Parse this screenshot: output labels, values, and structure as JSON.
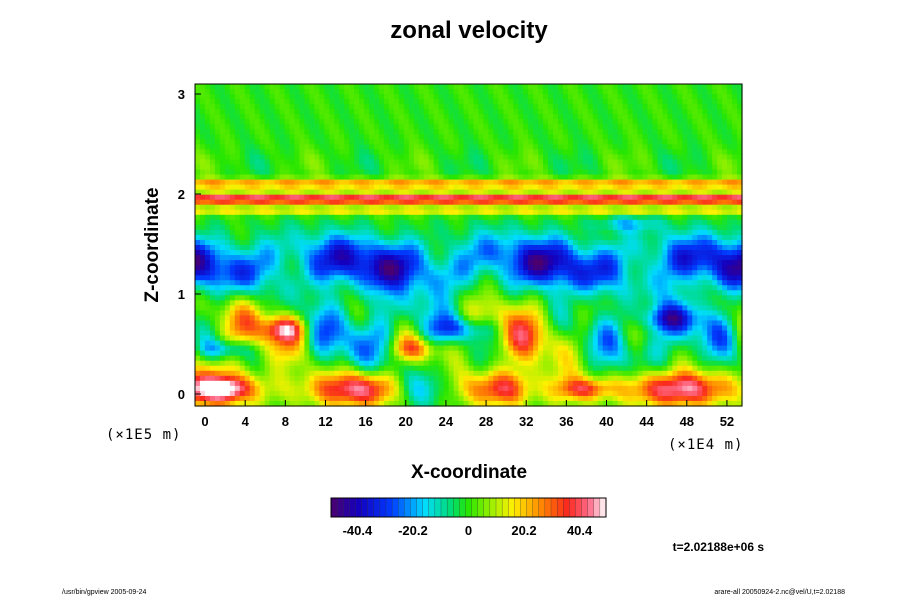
{
  "chart_data": {
    "type": "heatmap",
    "title": "zonal velocity",
    "xlabel": "X-coordinate",
    "ylabel": "Z-coordinate",
    "x_scale_note": "(×1E4 m)",
    "y_scale_note": "(×1E5 m)",
    "x_ticks": [
      "0",
      "4",
      "8",
      "12",
      "16",
      "20",
      "24",
      "28",
      "32",
      "36",
      "40",
      "44",
      "48",
      "52"
    ],
    "x_tick_values": [
      0,
      4,
      8,
      12,
      16,
      20,
      24,
      28,
      32,
      36,
      40,
      44,
      48,
      52
    ],
    "y_ticks": [
      "0",
      "1",
      "2",
      "3"
    ],
    "y_tick_values": [
      0,
      1,
      2,
      3
    ],
    "xlim": [
      -1,
      53.5
    ],
    "ylim": [
      -0.12,
      3.1
    ],
    "colorbar": {
      "min": -50,
      "max": 50,
      "tick_labels": [
        "-40.4",
        "-20.2",
        "0",
        "20.2",
        "40.4"
      ],
      "tick_values": [
        -40.4,
        -20.2,
        0,
        20.2,
        40.4
      ],
      "palette": "rainbow (purple-blue-cyan-green-yellow-red-white)"
    },
    "time_label": "t=2.02188e+06 s",
    "features": [
      {
        "z": 1.95,
        "desc": "strong positive (red) zonal jet band across domain"
      },
      {
        "z": 2.1,
        "desc": "weaker positive (yellow/orange) band"
      },
      {
        "z": 1.3,
        "desc": "negative (blue) patchy layer"
      },
      {
        "z": 0.1,
        "desc": "strong positive (red/white) near-surface flow with blue patches"
      }
    ]
  },
  "footer": {
    "left": "/usr/bin/gpview 2005-09-24",
    "right": "arare-all 20050924-2.nc@vel/U,t=2.02188"
  },
  "colors": {
    "background": "#ffffff",
    "frame": "#000000"
  }
}
